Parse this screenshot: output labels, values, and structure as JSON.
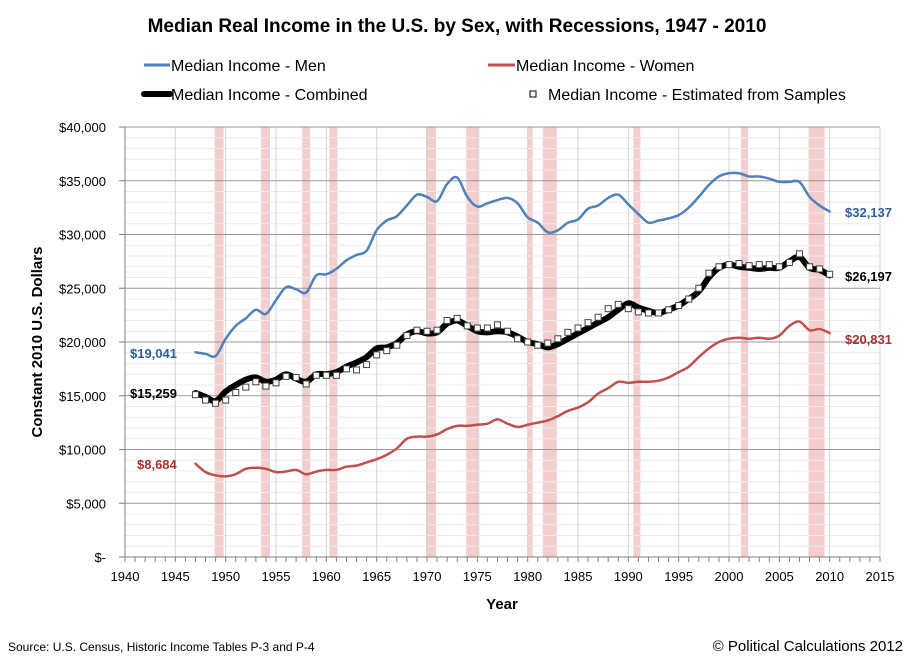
{
  "chart_data": {
    "type": "line",
    "title": "Median Real Income in the U.S. by Sex, with Recessions, 1947 - 2010",
    "xlabel": "Year",
    "ylabel": "Constant 2010 U.S. Dollars",
    "xlim": [
      1940,
      2015
    ],
    "ylim": [
      0,
      40000
    ],
    "x_ticks": [
      1940,
      1945,
      1950,
      1955,
      1960,
      1965,
      1970,
      1975,
      1980,
      1985,
      1990,
      1995,
      2000,
      2005,
      2010,
      2015
    ],
    "x_tick_labels": [
      "1940",
      "1945",
      "1950",
      "1955",
      "1960",
      "1965",
      "1970",
      "1975",
      "1980",
      "1985",
      "1990",
      "1995",
      "2000",
      "2005",
      "2010",
      "2015"
    ],
    "y_ticks": [
      0,
      5000,
      10000,
      15000,
      20000,
      25000,
      30000,
      35000,
      40000
    ],
    "y_tick_labels": [
      "$-",
      "$5,000",
      "$10,000",
      "$15,000",
      "$20,000",
      "$25,000",
      "$30,000",
      "$35,000",
      "$40,000"
    ],
    "grid": true,
    "legend_position": "top",
    "colors": {
      "men": "#4f81bd",
      "women": "#c0504d",
      "combined": "#000000",
      "recession": "#f2c4c4",
      "men_label": "#2e5f9a",
      "women_label": "#a8322e"
    },
    "legend": [
      {
        "name": "Median Income - Men",
        "key": "men"
      },
      {
        "name": "Median Income - Women",
        "key": "women"
      },
      {
        "name": "Median Income - Combined",
        "key": "combined"
      },
      {
        "name": "Median Income - Estimated from Samples",
        "key": "samples"
      }
    ],
    "recessions": [
      [
        1948.9,
        1949.8
      ],
      [
        1953.5,
        1954.4
      ],
      [
        1957.6,
        1958.4
      ],
      [
        1960.3,
        1961.1
      ],
      [
        1969.9,
        1970.9
      ],
      [
        1973.9,
        1975.2
      ],
      [
        1980.0,
        1980.5
      ],
      [
        1981.5,
        1982.9
      ],
      [
        1990.5,
        1991.2
      ],
      [
        2001.2,
        2001.9
      ],
      [
        2007.9,
        2009.5
      ]
    ],
    "x": [
      1947,
      1948,
      1949,
      1950,
      1951,
      1952,
      1953,
      1954,
      1955,
      1956,
      1957,
      1958,
      1959,
      1960,
      1961,
      1962,
      1963,
      1964,
      1965,
      1966,
      1967,
      1968,
      1969,
      1970,
      1971,
      1972,
      1973,
      1974,
      1975,
      1976,
      1977,
      1978,
      1979,
      1980,
      1981,
      1982,
      1983,
      1984,
      1985,
      1986,
      1987,
      1988,
      1989,
      1990,
      1991,
      1992,
      1993,
      1994,
      1995,
      1996,
      1997,
      1998,
      1999,
      2000,
      2001,
      2002,
      2003,
      2004,
      2005,
      2006,
      2007,
      2008,
      2009,
      2010
    ],
    "series": [
      {
        "name": "Median Income - Men",
        "key": "men",
        "values": [
          19041,
          18900,
          18700,
          20300,
          21500,
          22200,
          23000,
          22600,
          23900,
          25100,
          24900,
          24600,
          26200,
          26300,
          26800,
          27600,
          28100,
          28500,
          30400,
          31300,
          31700,
          32700,
          33700,
          33500,
          33100,
          34700,
          35300,
          33500,
          32600,
          32900,
          33200,
          33400,
          32900,
          31600,
          31100,
          30200,
          30400,
          31100,
          31400,
          32400,
          32700,
          33400,
          33700,
          32800,
          31900,
          31100,
          31300,
          31500,
          31800,
          32500,
          33500,
          34600,
          35400,
          35700,
          35700,
          35400,
          35400,
          35200,
          34900,
          34900,
          34900,
          33500,
          32700,
          32137
        ]
      },
      {
        "name": "Median Income - Women",
        "key": "women",
        "values": [
          8684,
          7900,
          7600,
          7500,
          7700,
          8200,
          8300,
          8200,
          7900,
          7950,
          8100,
          7700,
          7950,
          8100,
          8100,
          8400,
          8500,
          8800,
          9100,
          9500,
          10100,
          11000,
          11200,
          11200,
          11400,
          11900,
          12200,
          12200,
          12300,
          12400,
          12800,
          12400,
          12100,
          12300,
          12500,
          12700,
          13100,
          13600,
          13900,
          14400,
          15200,
          15700,
          16300,
          16200,
          16300,
          16300,
          16400,
          16700,
          17200,
          17700,
          18600,
          19400,
          20000,
          20300,
          20400,
          20300,
          20400,
          20300,
          20600,
          21500,
          21900,
          21100,
          21200,
          20831
        ]
      },
      {
        "name": "Median Income - Combined",
        "key": "combined",
        "values": [
          15259,
          14900,
          14500,
          15400,
          16000,
          16500,
          16700,
          16300,
          16500,
          17000,
          16600,
          16300,
          17000,
          17000,
          17200,
          17700,
          18100,
          18600,
          19400,
          19500,
          19900,
          20700,
          21000,
          20800,
          20900,
          21700,
          22000,
          21500,
          21000,
          20900,
          21000,
          20900,
          20500,
          20000,
          19800,
          19500,
          19800,
          20300,
          20800,
          21300,
          21800,
          22300,
          23000,
          23600,
          23200,
          22900,
          22700,
          23000,
          23400,
          24000,
          24700,
          26000,
          26900,
          27200,
          27000,
          26900,
          26800,
          26900,
          26900,
          27500,
          27900,
          26900,
          26700,
          26197
        ]
      },
      {
        "name": "Median Income - Estimated from Samples",
        "key": "samples",
        "values": [
          15100,
          14600,
          14300,
          14600,
          15300,
          15800,
          16300,
          15900,
          16200,
          16800,
          16700,
          16100,
          16900,
          16900,
          16900,
          17500,
          17400,
          17900,
          18800,
          19200,
          19700,
          20600,
          21100,
          21000,
          21100,
          22000,
          22200,
          21500,
          21300,
          21300,
          21600,
          21000,
          20300,
          20000,
          19700,
          19900,
          20300,
          20900,
          21300,
          21800,
          22300,
          23100,
          23500,
          23100,
          22800,
          22700,
          22700,
          23000,
          23400,
          24000,
          25000,
          26400,
          27000,
          27200,
          27300,
          27100,
          27200,
          27200,
          27000,
          27400,
          28200,
          27000,
          26800,
          26300
        ]
      }
    ],
    "end_labels": {
      "men_start": "$19,041",
      "women_start": "$8,684",
      "combined_start": "$15,259",
      "men_end": "$32,137",
      "combined_end": "$26,197",
      "women_end": "$20,831"
    }
  },
  "footer": {
    "source": "Source: U.S. Census, Historic Income Tables P-3 and P-4",
    "copyright": "© Political Calculations 2012"
  }
}
